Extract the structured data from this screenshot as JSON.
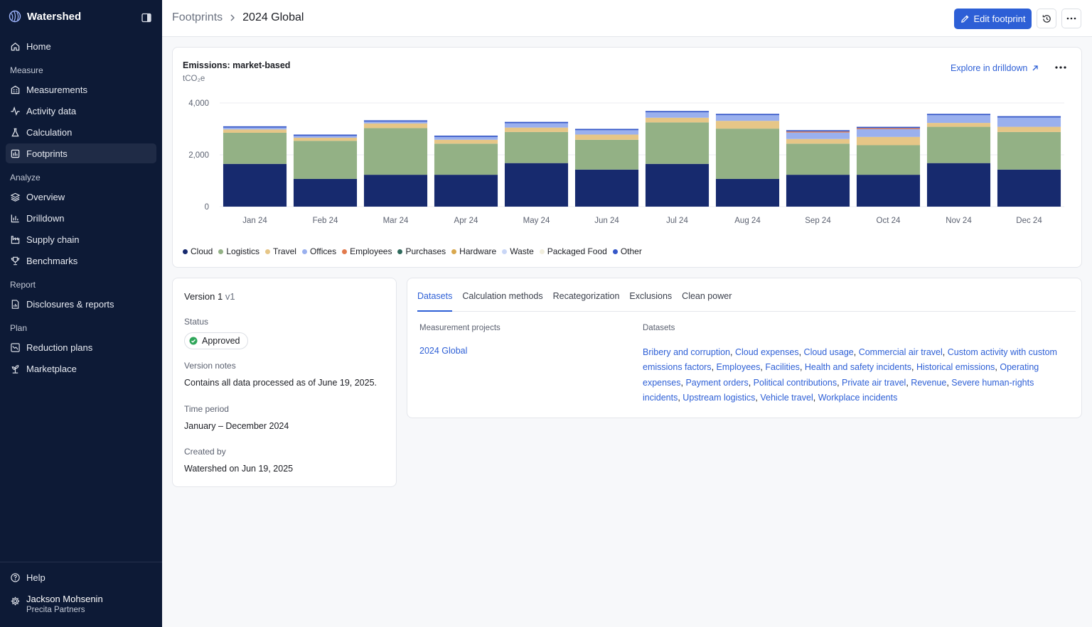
{
  "app": {
    "name": "Watershed"
  },
  "sidebar": {
    "home": "Home",
    "sections": [
      {
        "label": "Measure",
        "items": [
          "Measurements",
          "Activity data",
          "Calculation",
          "Footprints"
        ]
      },
      {
        "label": "Analyze",
        "items": [
          "Overview",
          "Drilldown",
          "Supply chain",
          "Benchmarks"
        ]
      },
      {
        "label": "Report",
        "items": [
          "Disclosures & reports"
        ]
      },
      {
        "label": "Plan",
        "items": [
          "Reduction plans",
          "Marketplace"
        ]
      }
    ],
    "active_item": "Footprints",
    "help": "Help",
    "user": {
      "name": "Jackson Mohsenin",
      "org": "Precita Partners"
    }
  },
  "header": {
    "breadcrumb_parent": "Footprints",
    "breadcrumb_current": "2024 Global",
    "edit_button": "Edit footprint"
  },
  "chart_card": {
    "title": "Emissions: market-based",
    "unit": "tCO₂e",
    "drilldown_link": "Explore in drilldown"
  },
  "chart_data": {
    "type": "bar",
    "stacked": true,
    "title": "Emissions: market-based",
    "ylabel": "tCO₂e",
    "ylim": [
      0,
      4000
    ],
    "yticks": [
      0,
      2000,
      4000
    ],
    "ytick_labels": [
      "0",
      "2,000",
      "4,000"
    ],
    "categories": [
      "Jan 24",
      "Feb 24",
      "Mar 24",
      "Apr 24",
      "May 24",
      "Jun 24",
      "Jul 24",
      "Aug 24",
      "Sep 24",
      "Oct 24",
      "Nov 24",
      "Dec 24"
    ],
    "series": [
      {
        "name": "Cloud",
        "color": "#172a6e",
        "values": [
          1650,
          1070,
          1230,
          1230,
          1680,
          1430,
          1650,
          1070,
          1230,
          1230,
          1680,
          1430
        ]
      },
      {
        "name": "Logistics",
        "color": "#93b185",
        "values": [
          1200,
          1470,
          1800,
          1200,
          1200,
          1150,
          1600,
          1940,
          1200,
          1140,
          1400,
          1450
        ]
      },
      {
        "name": "Travel",
        "color": "#e6c687",
        "values": [
          130,
          120,
          180,
          150,
          170,
          200,
          180,
          300,
          180,
          320,
          150,
          200
        ]
      },
      {
        "name": "Offices",
        "color": "#9ab0ee",
        "values": [
          70,
          70,
          70,
          110,
          170,
          170,
          210,
          220,
          250,
          300,
          300,
          360
        ]
      },
      {
        "name": "Employees",
        "color": "#e27a4d",
        "values": [
          0,
          0,
          0,
          0,
          0,
          0,
          0,
          0,
          40,
          40,
          0,
          0
        ]
      },
      {
        "name": "Purchases",
        "color": "#2f6a5c",
        "values": [
          0,
          0,
          0,
          0,
          0,
          0,
          0,
          0,
          0,
          0,
          0,
          0
        ]
      },
      {
        "name": "Hardware",
        "color": "#d9a84e",
        "values": [
          0,
          0,
          0,
          0,
          0,
          0,
          0,
          0,
          0,
          0,
          0,
          0
        ]
      },
      {
        "name": "Waste",
        "color": "#c9d6f6",
        "values": [
          0,
          0,
          0,
          0,
          0,
          0,
          0,
          0,
          0,
          0,
          0,
          0
        ]
      },
      {
        "name": "Packaged Food",
        "color": "#f1eedd",
        "values": [
          0,
          0,
          0,
          0,
          0,
          0,
          0,
          0,
          0,
          0,
          0,
          0
        ]
      },
      {
        "name": "Other",
        "color": "#3557c8",
        "values": [
          50,
          50,
          50,
          50,
          50,
          50,
          50,
          50,
          50,
          50,
          50,
          50
        ]
      }
    ],
    "legend": "bottom-left",
    "grid": true
  },
  "version_card": {
    "version_label": "Version 1",
    "version_sub": "v1",
    "status_label": "Status",
    "status_value": "Approved",
    "notes_label": "Version notes",
    "notes_value": "Contains all data processed as of June 19, 2025.",
    "period_label": "Time period",
    "period_value": "January – December 2024",
    "created_label": "Created by",
    "created_value": "Watershed on Jun 19, 2025"
  },
  "datasets_card": {
    "tabs": [
      "Datasets",
      "Calculation methods",
      "Recategorization",
      "Exclusions",
      "Clean power"
    ],
    "active_tab": "Datasets",
    "col_projects": "Measurement projects",
    "col_datasets": "Datasets",
    "project": "2024 Global",
    "datasets": [
      "Bribery and corruption",
      "Cloud expenses",
      "Cloud usage",
      "Commercial air travel",
      "Custom activity with custom emissions factors",
      "Employees",
      "Facilities",
      "Health and safety incidents",
      "Historical emissions",
      "Operating expenses",
      "Payment orders",
      "Political contributions",
      "Private air travel",
      "Revenue",
      "Severe human-rights incidents",
      "Upstream logistics",
      "Vehicle travel",
      "Workplace incidents"
    ]
  }
}
